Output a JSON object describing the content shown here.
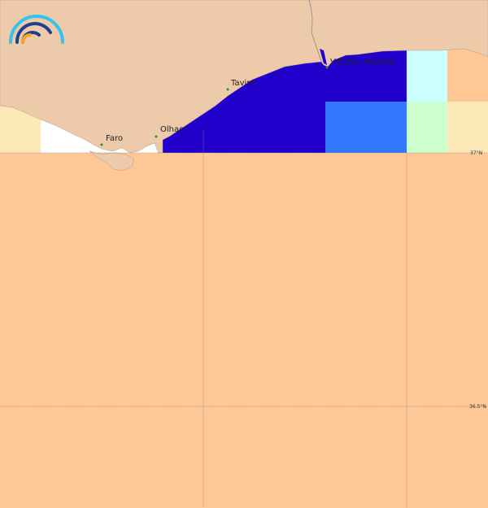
{
  "map": {
    "towns": [
      {
        "name": "Faro"
      },
      {
        "name": "Olhao"
      },
      {
        "name": "Tavira"
      },
      {
        "name": "V.R.Sto. Antonio"
      }
    ],
    "latitude_labels": [
      "37°N",
      "36.5°N"
    ],
    "colors": {
      "land": "#edcaa9",
      "sea_dark_blue": "#2200cc",
      "sea_medium_blue": "#3377ff",
      "cyan": "#ccffff",
      "light_green": "#ccffcc",
      "light_yellow": "#fde8b8",
      "orange": "#fdc896",
      "no_data": "#ffffff",
      "town_marker": "#1a9a1a"
    },
    "logo": {
      "icon": "arc-logo-icon"
    }
  }
}
